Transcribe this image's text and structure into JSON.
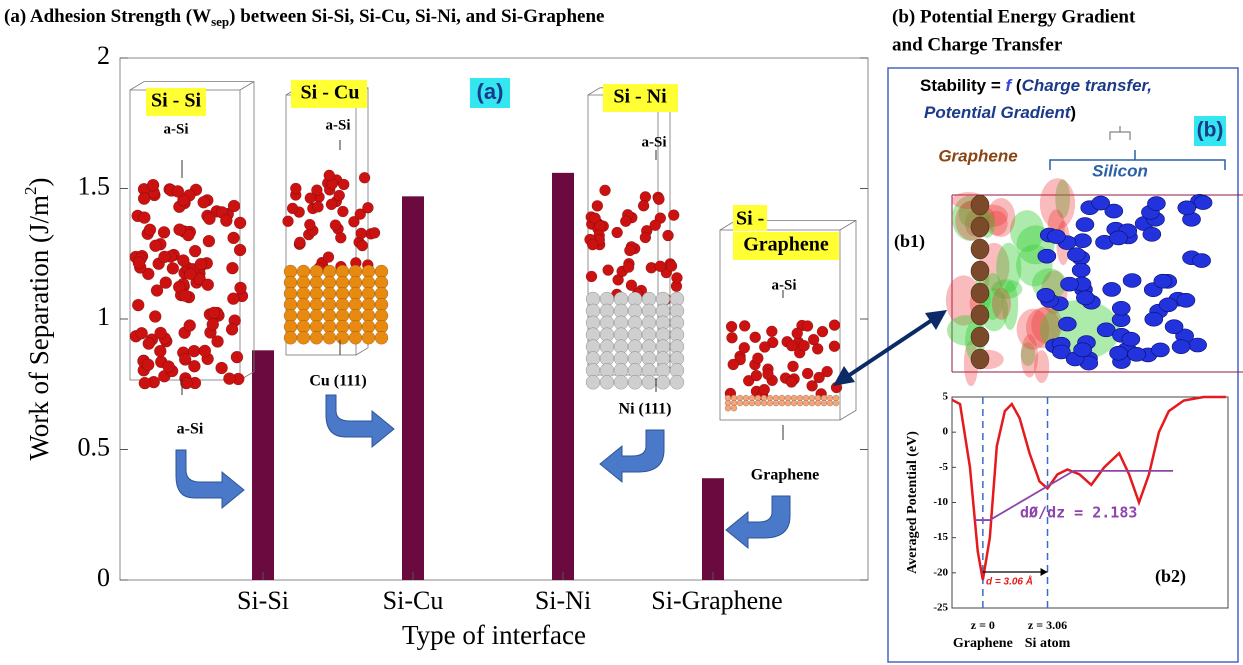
{
  "chart_data": [
    {
      "type": "bar",
      "title": [
        "(a) Adhesion Strength (W",
        "sep",
        ") between Si-Si, Si-Cu, Si-Ni, and Si-Graphene"
      ],
      "y_label": [
        "Work of Separation (J/m",
        "2",
        ")"
      ],
      "x_label": "Type of interface",
      "categories": [
        "Si-Si",
        "Si-Cu",
        "Si-Ni",
        "Si-Graphene"
      ],
      "values": [
        0.88,
        1.47,
        1.56,
        0.39
      ],
      "color": "#6b0a3e",
      "ylim": [
        0,
        2
      ],
      "yticks": [
        0,
        0.5,
        1,
        1.5,
        2
      ],
      "annotations": [
        "Si - Si",
        "a-Si",
        "a-Si",
        "Si - Cu",
        "a-Si",
        "Cu (111)",
        "Si - Ni",
        "a-Si",
        "Ni (111)",
        "Si -",
        "Graphene",
        "a-Si",
        "Graphene",
        "(a)"
      ]
    },
    {
      "type": "line",
      "title": [
        "(b) Potential Energy Gradient",
        "and Charge Transfer"
      ],
      "panel_texts": [
        "Stability = ",
        "f",
        " (",
        "Charge transfer,",
        "Potential Gradient",
        ")",
        "(b)",
        "Graphene",
        "Silicon",
        "(b1)",
        "(b2)"
      ],
      "y_label": "Averaged Potential (eV)",
      "xlim": [
        -1.46,
        11.6
      ],
      "xticks": [
        {
          "value": 0,
          "label": "z = 0"
        },
        {
          "value": 3.06,
          "label": "z = 3.06"
        }
      ],
      "xtick_sublabels": [
        "Graphene",
        "Si atom"
      ],
      "ylim": [
        -25,
        5
      ],
      "yticks": [
        -25,
        -20,
        -15,
        -10,
        -5,
        0,
        5
      ],
      "series": [
        {
          "color": "#e41a1c",
          "x": [
            -1.46,
            -1.08,
            -0.61,
            -0.24,
            0,
            0.33,
            0.66,
            1.04,
            1.37,
            1.74,
            2.21,
            2.68,
            3.06,
            3.53,
            4.0,
            4.57,
            5.13,
            5.74,
            6.45,
            6.92,
            7.39,
            7.86,
            8.33,
            8.8,
            9.51,
            10.45,
            11.5
          ],
          "values": [
            4.6,
            4,
            -5,
            -17,
            -21,
            -15,
            -2,
            3,
            4,
            2,
            -3,
            -7,
            -8,
            -6,
            -5.3,
            -6,
            -7.5,
            -5,
            -3,
            -6,
            -10,
            -6,
            0,
            3,
            4.5,
            5,
            5
          ]
        },
        {
          "color": "#8e44ad",
          "x": [
            -0.38,
            0.33,
            4.3,
            9.0
          ],
          "values": [
            -12.5,
            -12.5,
            -5.5,
            -5.5
          ]
        }
      ],
      "annotations": [
        "dØ/dz = 2.183",
        "d = 3.06 Å"
      ]
    }
  ]
}
